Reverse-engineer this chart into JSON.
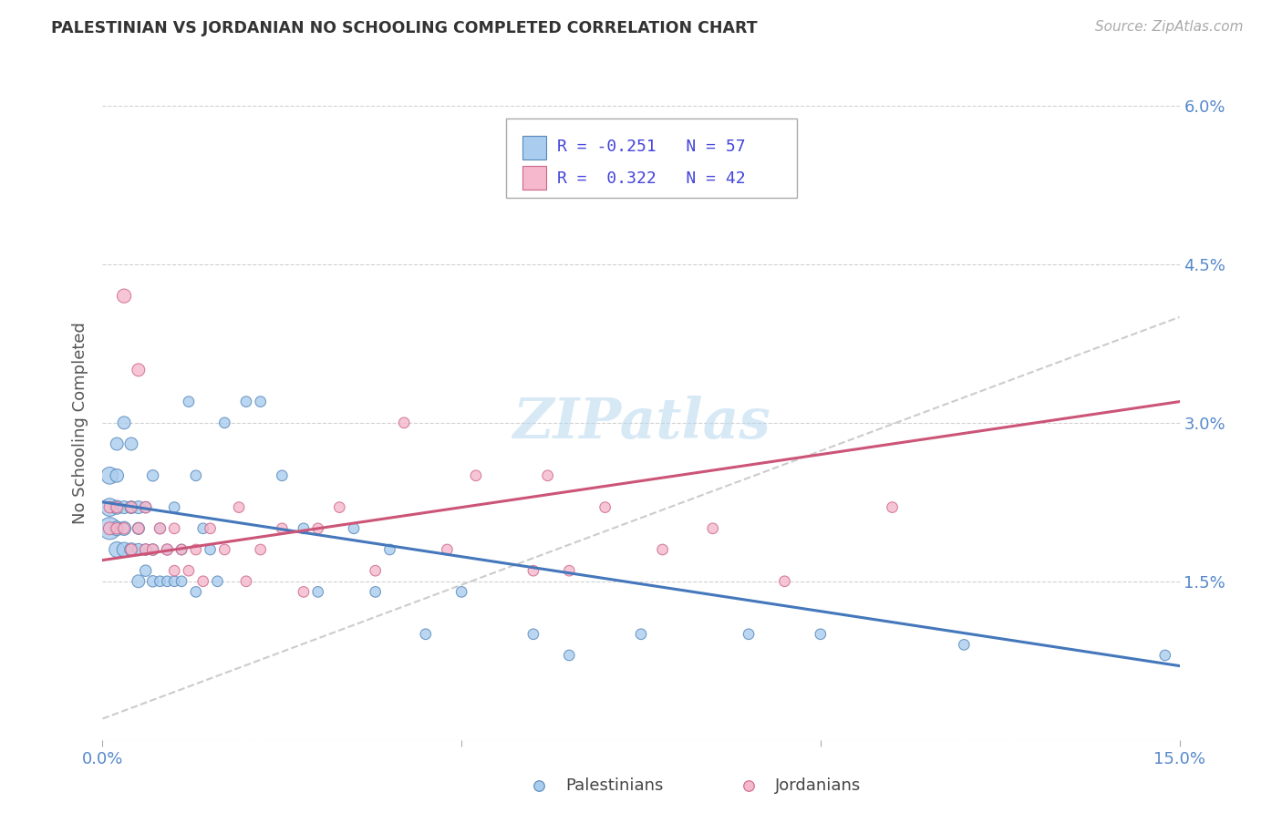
{
  "title": "PALESTINIAN VS JORDANIAN NO SCHOOLING COMPLETED CORRELATION CHART",
  "source": "Source: ZipAtlas.com",
  "ylabel": "No Schooling Completed",
  "xlim": [
    0.0,
    0.15
  ],
  "ylim": [
    0.0,
    0.06
  ],
  "xticks": [
    0.0,
    0.05,
    0.1,
    0.15
  ],
  "xtick_labels": [
    "0.0%",
    "",
    "",
    "15.0%"
  ],
  "yticks_right": [
    0.015,
    0.03,
    0.045,
    0.06
  ],
  "ytick_labels_right": [
    "1.5%",
    "3.0%",
    "4.5%",
    "6.0%"
  ],
  "palestinian_fill": "#aaccee",
  "palestinian_edge": "#5588bb",
  "jordanian_fill": "#f5b8cc",
  "jordanian_edge": "#cc6688",
  "palestinian_trend_color": "#4477bb",
  "jordanian_trend_color": "#cc5577",
  "gray_dash_color": "#cccccc",
  "legend_text_color": "#4444dd",
  "R_palestinian": -0.251,
  "N_palestinian": 57,
  "R_jordanian": 0.322,
  "N_jordanian": 42,
  "watermark": "ZIPatlas",
  "background_color": "#ffffff",
  "grid_color": "#cccccc",
  "palestinians_x": [
    0.001,
    0.001,
    0.001,
    0.002,
    0.002,
    0.002,
    0.002,
    0.002,
    0.003,
    0.003,
    0.003,
    0.003,
    0.004,
    0.004,
    0.004,
    0.005,
    0.005,
    0.005,
    0.005,
    0.006,
    0.006,
    0.006,
    0.007,
    0.007,
    0.007,
    0.008,
    0.008,
    0.009,
    0.009,
    0.01,
    0.01,
    0.011,
    0.011,
    0.012,
    0.013,
    0.013,
    0.014,
    0.015,
    0.016,
    0.017,
    0.02,
    0.022,
    0.025,
    0.028,
    0.03,
    0.035,
    0.038,
    0.04,
    0.045,
    0.05,
    0.06,
    0.065,
    0.075,
    0.09,
    0.1,
    0.12,
    0.148
  ],
  "palestinians_y": [
    0.02,
    0.022,
    0.025,
    0.018,
    0.02,
    0.022,
    0.025,
    0.028,
    0.018,
    0.02,
    0.022,
    0.03,
    0.018,
    0.022,
    0.028,
    0.015,
    0.018,
    0.02,
    0.022,
    0.016,
    0.018,
    0.022,
    0.015,
    0.018,
    0.025,
    0.015,
    0.02,
    0.015,
    0.018,
    0.015,
    0.022,
    0.015,
    0.018,
    0.032,
    0.014,
    0.025,
    0.02,
    0.018,
    0.015,
    0.03,
    0.032,
    0.032,
    0.025,
    0.02,
    0.014,
    0.02,
    0.014,
    0.018,
    0.01,
    0.014,
    0.01,
    0.008,
    0.01,
    0.01,
    0.01,
    0.009,
    0.008
  ],
  "palestinians_size": [
    300,
    200,
    180,
    150,
    130,
    120,
    110,
    100,
    130,
    120,
    100,
    100,
    110,
    100,
    100,
    100,
    90,
    90,
    100,
    80,
    80,
    80,
    80,
    80,
    80,
    70,
    70,
    70,
    70,
    70,
    70,
    70,
    70,
    70,
    70,
    70,
    70,
    70,
    70,
    70,
    70,
    70,
    70,
    70,
    70,
    70,
    70,
    70,
    70,
    70,
    70,
    70,
    70,
    70,
    70,
    70,
    70
  ],
  "jordanians_x": [
    0.001,
    0.001,
    0.002,
    0.002,
    0.003,
    0.003,
    0.004,
    0.004,
    0.005,
    0.005,
    0.006,
    0.006,
    0.007,
    0.008,
    0.009,
    0.01,
    0.01,
    0.011,
    0.012,
    0.013,
    0.014,
    0.015,
    0.017,
    0.019,
    0.02,
    0.022,
    0.025,
    0.028,
    0.03,
    0.033,
    0.038,
    0.042,
    0.048,
    0.052,
    0.06,
    0.062,
    0.065,
    0.07,
    0.078,
    0.085,
    0.095,
    0.11
  ],
  "jordanians_y": [
    0.02,
    0.022,
    0.02,
    0.022,
    0.042,
    0.02,
    0.018,
    0.022,
    0.02,
    0.035,
    0.018,
    0.022,
    0.018,
    0.02,
    0.018,
    0.016,
    0.02,
    0.018,
    0.016,
    0.018,
    0.015,
    0.02,
    0.018,
    0.022,
    0.015,
    0.018,
    0.02,
    0.014,
    0.02,
    0.022,
    0.016,
    0.03,
    0.018,
    0.025,
    0.016,
    0.025,
    0.016,
    0.022,
    0.018,
    0.02,
    0.015,
    0.022
  ],
  "jordanians_size": [
    100,
    80,
    80,
    80,
    120,
    80,
    80,
    80,
    80,
    100,
    80,
    80,
    80,
    80,
    80,
    70,
    70,
    70,
    70,
    70,
    70,
    70,
    70,
    70,
    70,
    70,
    70,
    70,
    70,
    70,
    70,
    70,
    70,
    70,
    70,
    70,
    70,
    70,
    70,
    70,
    70,
    70
  ],
  "palestinians_trend_y0": 0.0225,
  "palestinians_trend_y1": 0.007,
  "jordanians_trend_y0": 0.017,
  "jordanians_trend_y1": 0.032,
  "gray_trend_y0": 0.002,
  "gray_trend_y1": 0.04
}
